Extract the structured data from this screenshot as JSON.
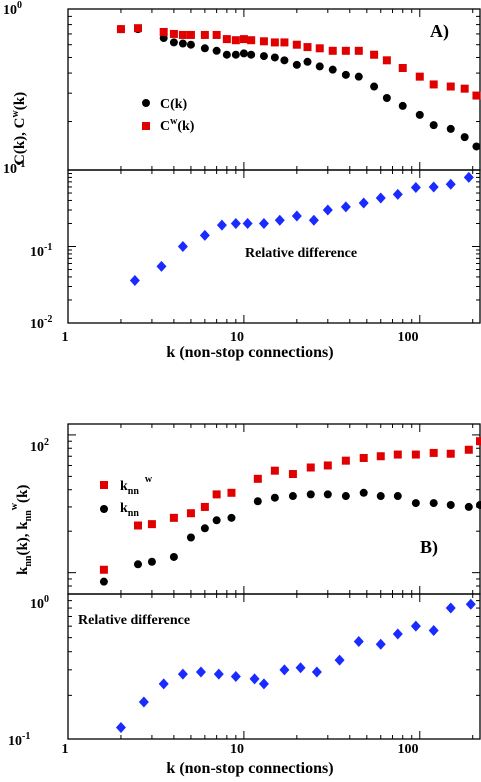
{
  "chart_data": [
    {
      "type": "scatter",
      "panel_label": "A)",
      "ylabel": "C(k), C^w(k)",
      "xlabel": "",
      "xscale": "log",
      "yscale": "log",
      "xlim": [
        1,
        220
      ],
      "ylim": [
        0.1,
        1
      ],
      "ytick_labels": [
        {
          "base": "10",
          "exp": "0",
          "value": 1
        },
        {
          "base": "10",
          "exp": "-1",
          "value": 0.1
        }
      ],
      "legend_position": "center-left",
      "series": [
        {
          "name": "C(k)",
          "legend_text": "C(k)",
          "marker": "circle",
          "color": "#000000",
          "x": [
            2,
            2.5,
            3.5,
            4,
            4.5,
            5,
            6,
            7,
            8,
            9,
            10,
            11,
            13,
            15,
            17,
            20,
            23,
            27,
            32,
            38,
            45,
            55,
            65,
            80,
            100,
            120,
            150,
            180,
            210
          ],
          "y": [
            0.75,
            0.75,
            0.66,
            0.62,
            0.61,
            0.6,
            0.57,
            0.55,
            0.52,
            0.52,
            0.53,
            0.52,
            0.51,
            0.5,
            0.48,
            0.45,
            0.47,
            0.44,
            0.42,
            0.39,
            0.38,
            0.33,
            0.28,
            0.25,
            0.22,
            0.19,
            0.18,
            0.16,
            0.14
          ]
        },
        {
          "name": "Cw(k)",
          "legend_text": "C",
          "legend_sup": "w",
          "legend_tail": "(k)",
          "marker": "square",
          "color": "#e00000",
          "x": [
            2,
            2.5,
            3.5,
            4,
            4.5,
            5,
            6,
            7,
            8,
            9,
            10,
            11,
            13,
            15,
            17,
            20,
            23,
            27,
            32,
            38,
            45,
            55,
            65,
            80,
            100,
            120,
            150,
            180,
            210
          ],
          "y": [
            0.75,
            0.76,
            0.72,
            0.7,
            0.69,
            0.69,
            0.69,
            0.69,
            0.65,
            0.64,
            0.65,
            0.64,
            0.63,
            0.62,
            0.62,
            0.6,
            0.58,
            0.57,
            0.55,
            0.55,
            0.55,
            0.52,
            0.48,
            0.43,
            0.38,
            0.34,
            0.33,
            0.32,
            0.29
          ]
        }
      ]
    },
    {
      "type": "scatter",
      "annotation": "Relative difference",
      "xlabel": "k (non-stop connections)",
      "xscale": "log",
      "yscale": "log",
      "xlim": [
        1,
        220
      ],
      "ylim": [
        0.01,
        1
      ],
      "xtick_labels": [
        "1",
        "10",
        "100"
      ],
      "ytick_labels": [
        {
          "base": "10",
          "exp": "-1",
          "value": 0.1
        },
        {
          "base": "10",
          "exp": "-2",
          "value": 0.01
        }
      ],
      "series": [
        {
          "marker": "diamond",
          "color": "#1a2bff",
          "x": [
            2.4,
            3.4,
            4.5,
            6,
            7.5,
            9,
            10.5,
            13,
            16,
            20,
            25,
            30,
            38,
            48,
            60,
            75,
            95,
            120,
            150,
            190
          ],
          "y": [
            0.036,
            0.055,
            0.1,
            0.14,
            0.19,
            0.2,
            0.2,
            0.2,
            0.22,
            0.25,
            0.22,
            0.3,
            0.33,
            0.37,
            0.43,
            0.48,
            0.59,
            0.6,
            0.65,
            0.8
          ]
        }
      ]
    },
    {
      "type": "scatter",
      "panel_label": "B)",
      "ylabel_main": "k",
      "ylabel_sub": "nn",
      "ylabel_mid": "(k), k",
      "ylabel_sub2": "nn",
      "ylabel_sup": "w",
      "ylabel_tail": "(k)",
      "xlabel": "",
      "xscale": "log",
      "yscale": "log",
      "xlim": [
        1,
        220
      ],
      "ylim": [
        7,
        120
      ],
      "ytick_labels": [
        {
          "base": "10",
          "exp": "2",
          "value": 100
        }
      ],
      "legend_position": "center-left",
      "series": [
        {
          "name": "knn w",
          "legend_text": "k",
          "legend_sub": "nn",
          "legend_sup": "w",
          "marker": "square",
          "color": "#e00000",
          "x": [
            1.6,
            2.5,
            3,
            4,
            5,
            6,
            7,
            8.5,
            12,
            15,
            19,
            24,
            30,
            38,
            48,
            60,
            75,
            95,
            120,
            150,
            190,
            220
          ],
          "y": [
            10.5,
            22,
            22.5,
            25,
            27,
            30,
            37,
            38,
            48,
            55,
            52,
            58,
            60,
            65,
            68,
            70,
            72,
            72,
            74,
            73,
            78,
            90
          ]
        },
        {
          "name": "knn",
          "legend_text": "k",
          "legend_sub": "nn",
          "marker": "circle",
          "color": "#000000",
          "x": [
            1.6,
            2.5,
            3,
            4,
            5,
            6,
            7,
            8.5,
            12,
            15,
            19,
            24,
            30,
            38,
            48,
            60,
            75,
            95,
            120,
            150,
            190,
            220
          ],
          "y": [
            8.6,
            11.5,
            12,
            13,
            18,
            21,
            24,
            25,
            33,
            35,
            36,
            37,
            37,
            36,
            38,
            36,
            36,
            32,
            32,
            31,
            30,
            31
          ]
        }
      ]
    },
    {
      "type": "scatter",
      "annotation": "Relative difference",
      "xlabel": "k (non-stop connections)",
      "xscale": "log",
      "yscale": "log",
      "xlim": [
        1,
        220
      ],
      "ylim": [
        0.1,
        1
      ],
      "xtick_labels": [
        "1",
        "10",
        "100"
      ],
      "ytick_labels": [
        {
          "base": "10",
          "exp": "0",
          "value": 1
        },
        {
          "base": "10",
          "exp": "-1",
          "value": 0.1
        }
      ],
      "series": [
        {
          "marker": "diamond",
          "color": "#1a2bff",
          "x": [
            2,
            2.7,
            3.5,
            4.5,
            5.7,
            7.2,
            9,
            11.5,
            13,
            17,
            21,
            26,
            35,
            45,
            60,
            75,
            95,
            120,
            150,
            195
          ],
          "y": [
            0.12,
            0.18,
            0.24,
            0.28,
            0.29,
            0.28,
            0.27,
            0.26,
            0.24,
            0.3,
            0.31,
            0.29,
            0.35,
            0.47,
            0.45,
            0.53,
            0.6,
            0.56,
            0.8,
            0.85
          ]
        }
      ]
    }
  ]
}
